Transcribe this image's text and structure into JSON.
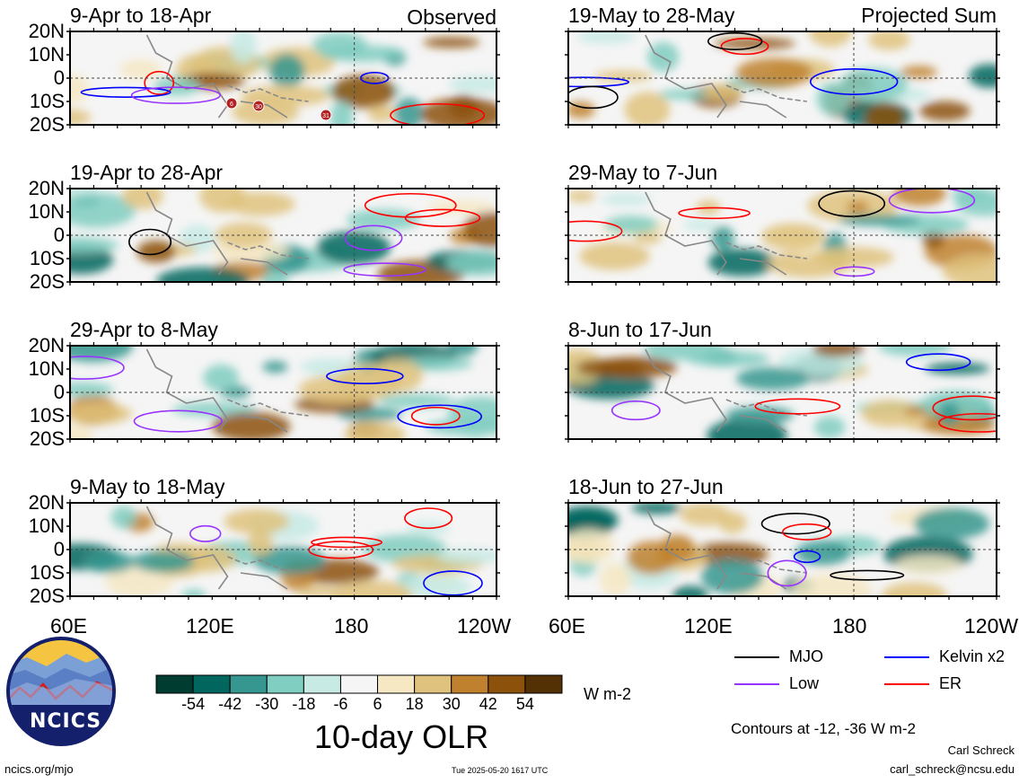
{
  "figure": {
    "title": "10-day OLR",
    "units": "W m-2",
    "contour_note": "Contours at -12, -36 W m-2",
    "author": "Carl Schreck",
    "email": "carl_schreck@ncsu.edu",
    "website": "ncics.org/mjo",
    "timestamp": "Tue 2025-05-20 1617 UTC",
    "logo_text": "NCICS",
    "observed_label": "Observed",
    "projected_label": "Projected Sum"
  },
  "axes": {
    "lat_labels": [
      "20N",
      "10N",
      "0",
      "10S",
      "20S"
    ],
    "lon_labels": [
      "60E",
      "120E",
      "180",
      "120W"
    ],
    "lon_labels_right": [
      "60E",
      "120E",
      "180",
      "120W"
    ]
  },
  "legend": {
    "items": [
      {
        "label": "MJO",
        "color": "#000000"
      },
      {
        "label": "Kelvin x2",
        "color": "#0000ff"
      },
      {
        "label": "Low",
        "color": "#9933ff"
      },
      {
        "label": "ER",
        "color": "#ff0000"
      }
    ]
  },
  "colorbar": {
    "ticks": [
      "-54",
      "-42",
      "-30",
      "-18",
      "-6",
      "6",
      "18",
      "30",
      "42",
      "54"
    ],
    "colors": [
      "#003c30",
      "#01665e",
      "#35978f",
      "#80cdc1",
      "#c7eae5",
      "#f5f5f5",
      "#f6e8c3",
      "#dfc27d",
      "#bf812d",
      "#8c510a",
      "#543005"
    ]
  },
  "chart_data": {
    "type": "heatmap",
    "variable": "10-day OLR",
    "units": "W m-2",
    "x_range": [
      "60E",
      "120W"
    ],
    "y_range": [
      "20S",
      "20N"
    ],
    "panels": [
      {
        "title": "9-Apr to 18-Apr",
        "group": "Observed",
        "storms": [
          "6",
          "30",
          "31"
        ]
      },
      {
        "title": "19-Apr to 28-Apr",
        "group": "Observed",
        "storms": []
      },
      {
        "title": "29-Apr to 8-May",
        "group": "Observed",
        "storms": []
      },
      {
        "title": "9-May to 18-May",
        "group": "Observed",
        "storms": []
      },
      {
        "title": "19-May to 28-May",
        "group": "Projected Sum",
        "storms": []
      },
      {
        "title": "29-May to 7-Jun",
        "group": "Projected Sum",
        "storms": []
      },
      {
        "title": "8-Jun to 17-Jun",
        "group": "Projected Sum",
        "storms": []
      },
      {
        "title": "18-Jun to 27-Jun",
        "group": "Projected Sum",
        "storms": []
      }
    ]
  }
}
